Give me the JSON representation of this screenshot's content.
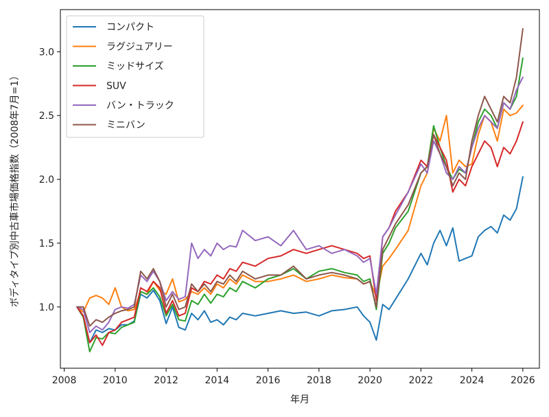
{
  "chart_data": {
    "type": "line",
    "xlabel": "年月",
    "ylabel": "ボディタイプ別中古車市場価格指数（2008年7月=1）",
    "xlim": [
      2007.85,
      2026.65
    ],
    "ylim": [
      0.52,
      3.33
    ],
    "xticks": [
      2008,
      2010,
      2012,
      2014,
      2016,
      2018,
      2020,
      2022,
      2024,
      2026
    ],
    "yticks": [
      1.0,
      1.5,
      2.0,
      2.5,
      3.0
    ],
    "xtick_labels": [
      "2008",
      "2010",
      "2012",
      "2014",
      "2016",
      "2018",
      "2020",
      "2022",
      "2024",
      "2026"
    ],
    "ytick_labels": [
      "1.0",
      "1.5",
      "2.0",
      "2.5",
      "3.0"
    ],
    "grid": false,
    "legend_position": "top-left",
    "series": [
      {
        "name": "コンパクト",
        "color": "#1f77b4",
        "x": [
          2008.5,
          2008.75,
          2009.0,
          2009.25,
          2009.5,
          2009.75,
          2010.0,
          2010.25,
          2010.5,
          2010.75,
          2011.0,
          2011.25,
          2011.5,
          2011.75,
          2012.0,
          2012.25,
          2012.5,
          2012.75,
          2013.0,
          2013.25,
          2013.5,
          2013.75,
          2014.0,
          2014.25,
          2014.5,
          2014.75,
          2015.0,
          2015.5,
          2016.0,
          2016.5,
          2017.0,
          2017.5,
          2018.0,
          2018.5,
          2019.0,
          2019.5,
          2019.75,
          2020.0,
          2020.25,
          2020.5,
          2020.75,
          2021.0,
          2021.5,
          2022.0,
          2022.25,
          2022.5,
          2022.75,
          2023.0,
          2023.25,
          2023.5,
          2023.75,
          2024.0,
          2024.25,
          2024.5,
          2024.75,
          2025.0,
          2025.25,
          2025.5,
          2025.75,
          2026.0
        ],
        "values": [
          1.0,
          0.93,
          0.72,
          0.82,
          0.8,
          0.83,
          0.82,
          0.86,
          0.86,
          0.89,
          1.1,
          1.07,
          1.13,
          1.05,
          0.87,
          1.0,
          0.84,
          0.82,
          0.95,
          0.9,
          0.97,
          0.88,
          0.9,
          0.86,
          0.92,
          0.9,
          0.95,
          0.93,
          0.95,
          0.97,
          0.95,
          0.96,
          0.93,
          0.97,
          0.98,
          1.0,
          0.93,
          0.88,
          0.74,
          1.02,
          0.98,
          1.06,
          1.22,
          1.42,
          1.33,
          1.5,
          1.6,
          1.48,
          1.62,
          1.36,
          1.38,
          1.4,
          1.55,
          1.6,
          1.63,
          1.58,
          1.72,
          1.68,
          1.77,
          2.02
        ]
      },
      {
        "name": "ラグジュアリー",
        "color": "#ff7f0e",
        "x": [
          2008.5,
          2008.75,
          2009.0,
          2009.25,
          2009.5,
          2009.75,
          2010.0,
          2010.25,
          2010.5,
          2010.75,
          2011.0,
          2011.25,
          2011.5,
          2011.75,
          2012.0,
          2012.25,
          2012.5,
          2012.75,
          2013.0,
          2013.25,
          2013.5,
          2013.75,
          2014.0,
          2014.25,
          2014.5,
          2014.75,
          2015.0,
          2015.5,
          2016.0,
          2016.5,
          2017.0,
          2017.5,
          2018.0,
          2018.5,
          2019.0,
          2019.5,
          2019.75,
          2020.0,
          2020.25,
          2020.5,
          2020.75,
          2021.0,
          2021.5,
          2022.0,
          2022.25,
          2022.5,
          2022.75,
          2023.0,
          2023.25,
          2023.5,
          2023.75,
          2024.0,
          2024.25,
          2024.5,
          2024.75,
          2025.0,
          2025.25,
          2025.5,
          2025.75,
          2026.0
        ],
        "values": [
          1.0,
          0.96,
          1.07,
          1.09,
          1.07,
          1.02,
          1.15,
          1.0,
          0.97,
          0.98,
          1.12,
          1.1,
          1.2,
          1.13,
          1.1,
          1.22,
          1.04,
          1.06,
          1.12,
          1.1,
          1.15,
          1.1,
          1.18,
          1.15,
          1.22,
          1.18,
          1.25,
          1.2,
          1.2,
          1.22,
          1.25,
          1.2,
          1.22,
          1.25,
          1.23,
          1.22,
          1.18,
          1.2,
          1.08,
          1.32,
          1.38,
          1.45,
          1.6,
          1.95,
          2.05,
          2.4,
          2.3,
          2.5,
          2.05,
          2.15,
          2.1,
          2.12,
          2.35,
          2.5,
          2.45,
          2.3,
          2.55,
          2.5,
          2.52,
          2.58
        ]
      },
      {
        "name": "ミッドサイズ",
        "color": "#2ca02c",
        "x": [
          2008.5,
          2008.75,
          2009.0,
          2009.25,
          2009.5,
          2009.75,
          2010.0,
          2010.25,
          2010.5,
          2010.75,
          2011.0,
          2011.25,
          2011.5,
          2011.75,
          2012.0,
          2012.25,
          2012.5,
          2012.75,
          2013.0,
          2013.25,
          2013.5,
          2013.75,
          2014.0,
          2014.25,
          2014.5,
          2014.75,
          2015.0,
          2015.5,
          2016.0,
          2016.5,
          2017.0,
          2017.5,
          2018.0,
          2018.5,
          2019.0,
          2019.5,
          2019.75,
          2020.0,
          2020.25,
          2020.5,
          2020.75,
          2021.0,
          2021.5,
          2022.0,
          2022.25,
          2022.5,
          2022.75,
          2023.0,
          2023.25,
          2023.5,
          2023.75,
          2024.0,
          2024.25,
          2024.5,
          2024.75,
          2025.0,
          2025.25,
          2025.5,
          2025.75,
          2026.0
        ],
        "values": [
          1.0,
          0.92,
          0.65,
          0.76,
          0.75,
          0.8,
          0.79,
          0.84,
          0.86,
          0.88,
          1.12,
          1.1,
          1.15,
          1.08,
          0.93,
          1.02,
          0.9,
          0.89,
          1.05,
          1.02,
          1.1,
          1.03,
          1.1,
          1.08,
          1.15,
          1.12,
          1.2,
          1.15,
          1.22,
          1.25,
          1.3,
          1.22,
          1.28,
          1.3,
          1.27,
          1.25,
          1.2,
          1.22,
          0.98,
          1.42,
          1.5,
          1.62,
          1.75,
          2.05,
          2.1,
          2.42,
          2.25,
          2.1,
          2.0,
          2.08,
          2.05,
          2.25,
          2.45,
          2.55,
          2.5,
          2.4,
          2.6,
          2.55,
          2.65,
          2.95
        ]
      },
      {
        "name": "SUV",
        "color": "#d62728",
        "x": [
          2008.5,
          2008.75,
          2009.0,
          2009.25,
          2009.5,
          2009.75,
          2010.0,
          2010.25,
          2010.5,
          2010.75,
          2011.0,
          2011.25,
          2011.5,
          2011.75,
          2012.0,
          2012.25,
          2012.5,
          2012.75,
          2013.0,
          2013.25,
          2013.5,
          2013.75,
          2014.0,
          2014.25,
          2014.5,
          2014.75,
          2015.0,
          2015.5,
          2016.0,
          2016.5,
          2017.0,
          2017.5,
          2018.0,
          2018.5,
          2019.0,
          2019.5,
          2019.75,
          2020.0,
          2020.25,
          2020.5,
          2020.75,
          2021.0,
          2021.5,
          2022.0,
          2022.25,
          2022.5,
          2022.75,
          2023.0,
          2023.25,
          2023.5,
          2023.75,
          2024.0,
          2024.25,
          2024.5,
          2024.75,
          2025.0,
          2025.25,
          2025.5,
          2025.75,
          2026.0
        ],
        "values": [
          1.0,
          0.93,
          0.72,
          0.78,
          0.7,
          0.8,
          0.82,
          0.88,
          0.9,
          0.92,
          1.15,
          1.12,
          1.2,
          1.15,
          0.95,
          1.05,
          0.93,
          0.95,
          1.15,
          1.12,
          1.2,
          1.18,
          1.25,
          1.22,
          1.3,
          1.28,
          1.35,
          1.32,
          1.38,
          1.4,
          1.45,
          1.42,
          1.45,
          1.48,
          1.45,
          1.42,
          1.38,
          1.4,
          1.05,
          1.55,
          1.62,
          1.75,
          1.9,
          2.15,
          2.1,
          2.35,
          2.25,
          2.15,
          1.9,
          2.0,
          1.95,
          2.1,
          2.2,
          2.3,
          2.25,
          2.1,
          2.25,
          2.2,
          2.3,
          2.45
        ]
      },
      {
        "name": "バン・トラック",
        "color": "#9467bd",
        "x": [
          2008.5,
          2008.75,
          2009.0,
          2009.25,
          2009.5,
          2009.75,
          2010.0,
          2010.25,
          2010.5,
          2010.75,
          2011.0,
          2011.25,
          2011.5,
          2011.75,
          2012.0,
          2012.25,
          2012.5,
          2012.75,
          2013.0,
          2013.25,
          2013.5,
          2013.75,
          2014.0,
          2014.25,
          2014.5,
          2014.75,
          2015.0,
          2015.5,
          2016.0,
          2016.5,
          2017.0,
          2017.5,
          2018.0,
          2018.5,
          2019.0,
          2019.5,
          2019.75,
          2020.0,
          2020.25,
          2020.5,
          2020.75,
          2021.0,
          2021.5,
          2022.0,
          2022.25,
          2022.5,
          2022.75,
          2023.0,
          2023.25,
          2023.5,
          2023.75,
          2024.0,
          2024.25,
          2024.5,
          2024.75,
          2025.0,
          2025.25,
          2025.5,
          2025.75,
          2026.0
        ],
        "values": [
          1.0,
          0.98,
          0.8,
          0.85,
          0.82,
          0.88,
          0.98,
          1.0,
          0.99,
          1.02,
          1.25,
          1.2,
          1.28,
          1.2,
          1.05,
          1.12,
          1.06,
          1.08,
          1.5,
          1.38,
          1.45,
          1.4,
          1.5,
          1.45,
          1.48,
          1.47,
          1.6,
          1.52,
          1.55,
          1.48,
          1.6,
          1.45,
          1.48,
          1.42,
          1.45,
          1.4,
          1.35,
          1.38,
          1.1,
          1.55,
          1.62,
          1.72,
          1.9,
          2.12,
          2.05,
          2.3,
          2.2,
          2.05,
          2.0,
          2.1,
          2.05,
          2.25,
          2.4,
          2.5,
          2.45,
          2.4,
          2.6,
          2.55,
          2.7,
          2.8
        ]
      },
      {
        "name": "ミニバン",
        "color": "#8c564b",
        "x": [
          2008.5,
          2008.75,
          2009.0,
          2009.25,
          2009.5,
          2009.75,
          2010.0,
          2010.25,
          2010.5,
          2010.75,
          2011.0,
          2011.25,
          2011.5,
          2011.75,
          2012.0,
          2012.25,
          2012.5,
          2012.75,
          2013.0,
          2013.25,
          2013.5,
          2013.75,
          2014.0,
          2014.25,
          2014.5,
          2014.75,
          2015.0,
          2015.5,
          2016.0,
          2016.5,
          2017.0,
          2017.5,
          2018.0,
          2018.5,
          2019.0,
          2019.5,
          2019.75,
          2020.0,
          2020.25,
          2020.5,
          2020.75,
          2021.0,
          2021.5,
          2022.0,
          2022.25,
          2022.5,
          2022.75,
          2023.0,
          2023.25,
          2023.5,
          2023.75,
          2024.0,
          2024.25,
          2024.5,
          2024.75,
          2025.0,
          2025.25,
          2025.5,
          2025.75,
          2026.0
        ],
        "values": [
          1.0,
          1.0,
          0.85,
          0.9,
          0.88,
          0.92,
          0.95,
          0.97,
          0.98,
          1.0,
          1.28,
          1.22,
          1.3,
          1.2,
          1.0,
          1.1,
          0.98,
          1.0,
          1.18,
          1.12,
          1.18,
          1.12,
          1.2,
          1.18,
          1.25,
          1.2,
          1.28,
          1.22,
          1.25,
          1.25,
          1.32,
          1.22,
          1.25,
          1.27,
          1.25,
          1.22,
          1.18,
          1.2,
          1.0,
          1.45,
          1.55,
          1.65,
          1.8,
          2.05,
          2.1,
          2.35,
          2.2,
          2.1,
          1.95,
          2.05,
          2.0,
          2.3,
          2.5,
          2.65,
          2.55,
          2.45,
          2.65,
          2.6,
          2.8,
          3.18
        ]
      }
    ]
  }
}
